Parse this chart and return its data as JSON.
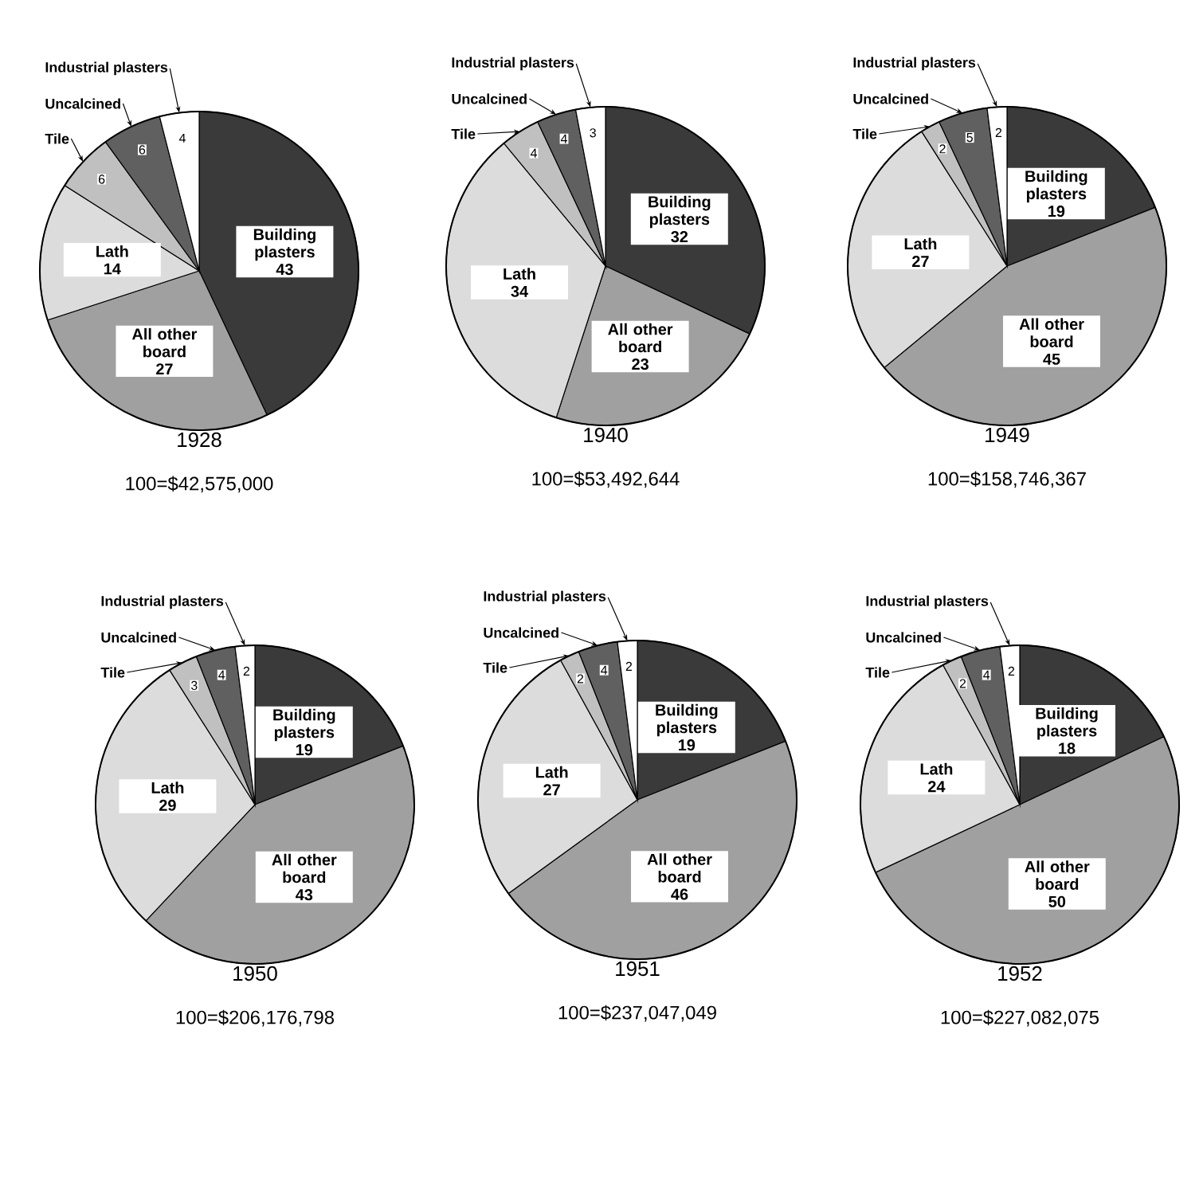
{
  "chart_data": [
    {
      "type": "pie",
      "title": "1928",
      "subtitle": "100=$42,575,000",
      "categories": [
        "Building plasters",
        "All other board",
        "Lath",
        "Tile",
        "Uncalcined",
        "Industrial plasters"
      ],
      "values": [
        43,
        27,
        14,
        6,
        6,
        4
      ],
      "colors": [
        "#3a3a3a",
        "#a0a0a0",
        "#dcdcdc",
        "#c0c0c0",
        "#606060",
        "#ffffff"
      ],
      "data_labels": true
    },
    {
      "type": "pie",
      "title": "1940",
      "subtitle": "100=$53,492,644",
      "categories": [
        "Building plasters",
        "All other board",
        "Lath",
        "Tile",
        "Uncalcined",
        "Industrial plasters"
      ],
      "values": [
        32,
        23,
        34,
        4,
        4,
        3
      ],
      "colors": [
        "#3a3a3a",
        "#a0a0a0",
        "#dcdcdc",
        "#c0c0c0",
        "#606060",
        "#ffffff"
      ],
      "data_labels": true
    },
    {
      "type": "pie",
      "title": "1949",
      "subtitle": "100=$158,746,367",
      "categories": [
        "Building plasters",
        "All other board",
        "Lath",
        "Tile",
        "Uncalcined",
        "Industrial plasters"
      ],
      "values": [
        19,
        45,
        27,
        2,
        5,
        2
      ],
      "colors": [
        "#3a3a3a",
        "#a0a0a0",
        "#dcdcdc",
        "#c0c0c0",
        "#606060",
        "#ffffff"
      ],
      "data_labels": true
    },
    {
      "type": "pie",
      "title": "1950",
      "subtitle": "100=$206,176,798",
      "categories": [
        "Building plasters",
        "All other board",
        "Lath",
        "Tile",
        "Uncalcined",
        "Industrial plasters"
      ],
      "values": [
        19,
        43,
        29,
        3,
        4,
        2
      ],
      "colors": [
        "#3a3a3a",
        "#a0a0a0",
        "#dcdcdc",
        "#c0c0c0",
        "#606060",
        "#ffffff"
      ],
      "data_labels": true
    },
    {
      "type": "pie",
      "title": "1951",
      "subtitle": "100=$237,047,049",
      "categories": [
        "Building plasters",
        "All other board",
        "Lath",
        "Tile",
        "Uncalcined",
        "Industrial plasters"
      ],
      "values": [
        19,
        46,
        27,
        2,
        4,
        2
      ],
      "colors": [
        "#3a3a3a",
        "#a0a0a0",
        "#dcdcdc",
        "#c0c0c0",
        "#606060",
        "#ffffff"
      ],
      "data_labels": true
    },
    {
      "type": "pie",
      "title": "1952",
      "subtitle": "100=$227,082,075",
      "categories": [
        "Building plasters",
        "All other board",
        "Lath",
        "Tile",
        "Uncalcined",
        "Industrial plasters"
      ],
      "values": [
        18,
        50,
        24,
        2,
        4,
        2
      ],
      "colors": [
        "#3a3a3a",
        "#a0a0a0",
        "#dcdcdc",
        "#c0c0c0",
        "#606060",
        "#ffffff"
      ],
      "data_labels": true
    }
  ]
}
